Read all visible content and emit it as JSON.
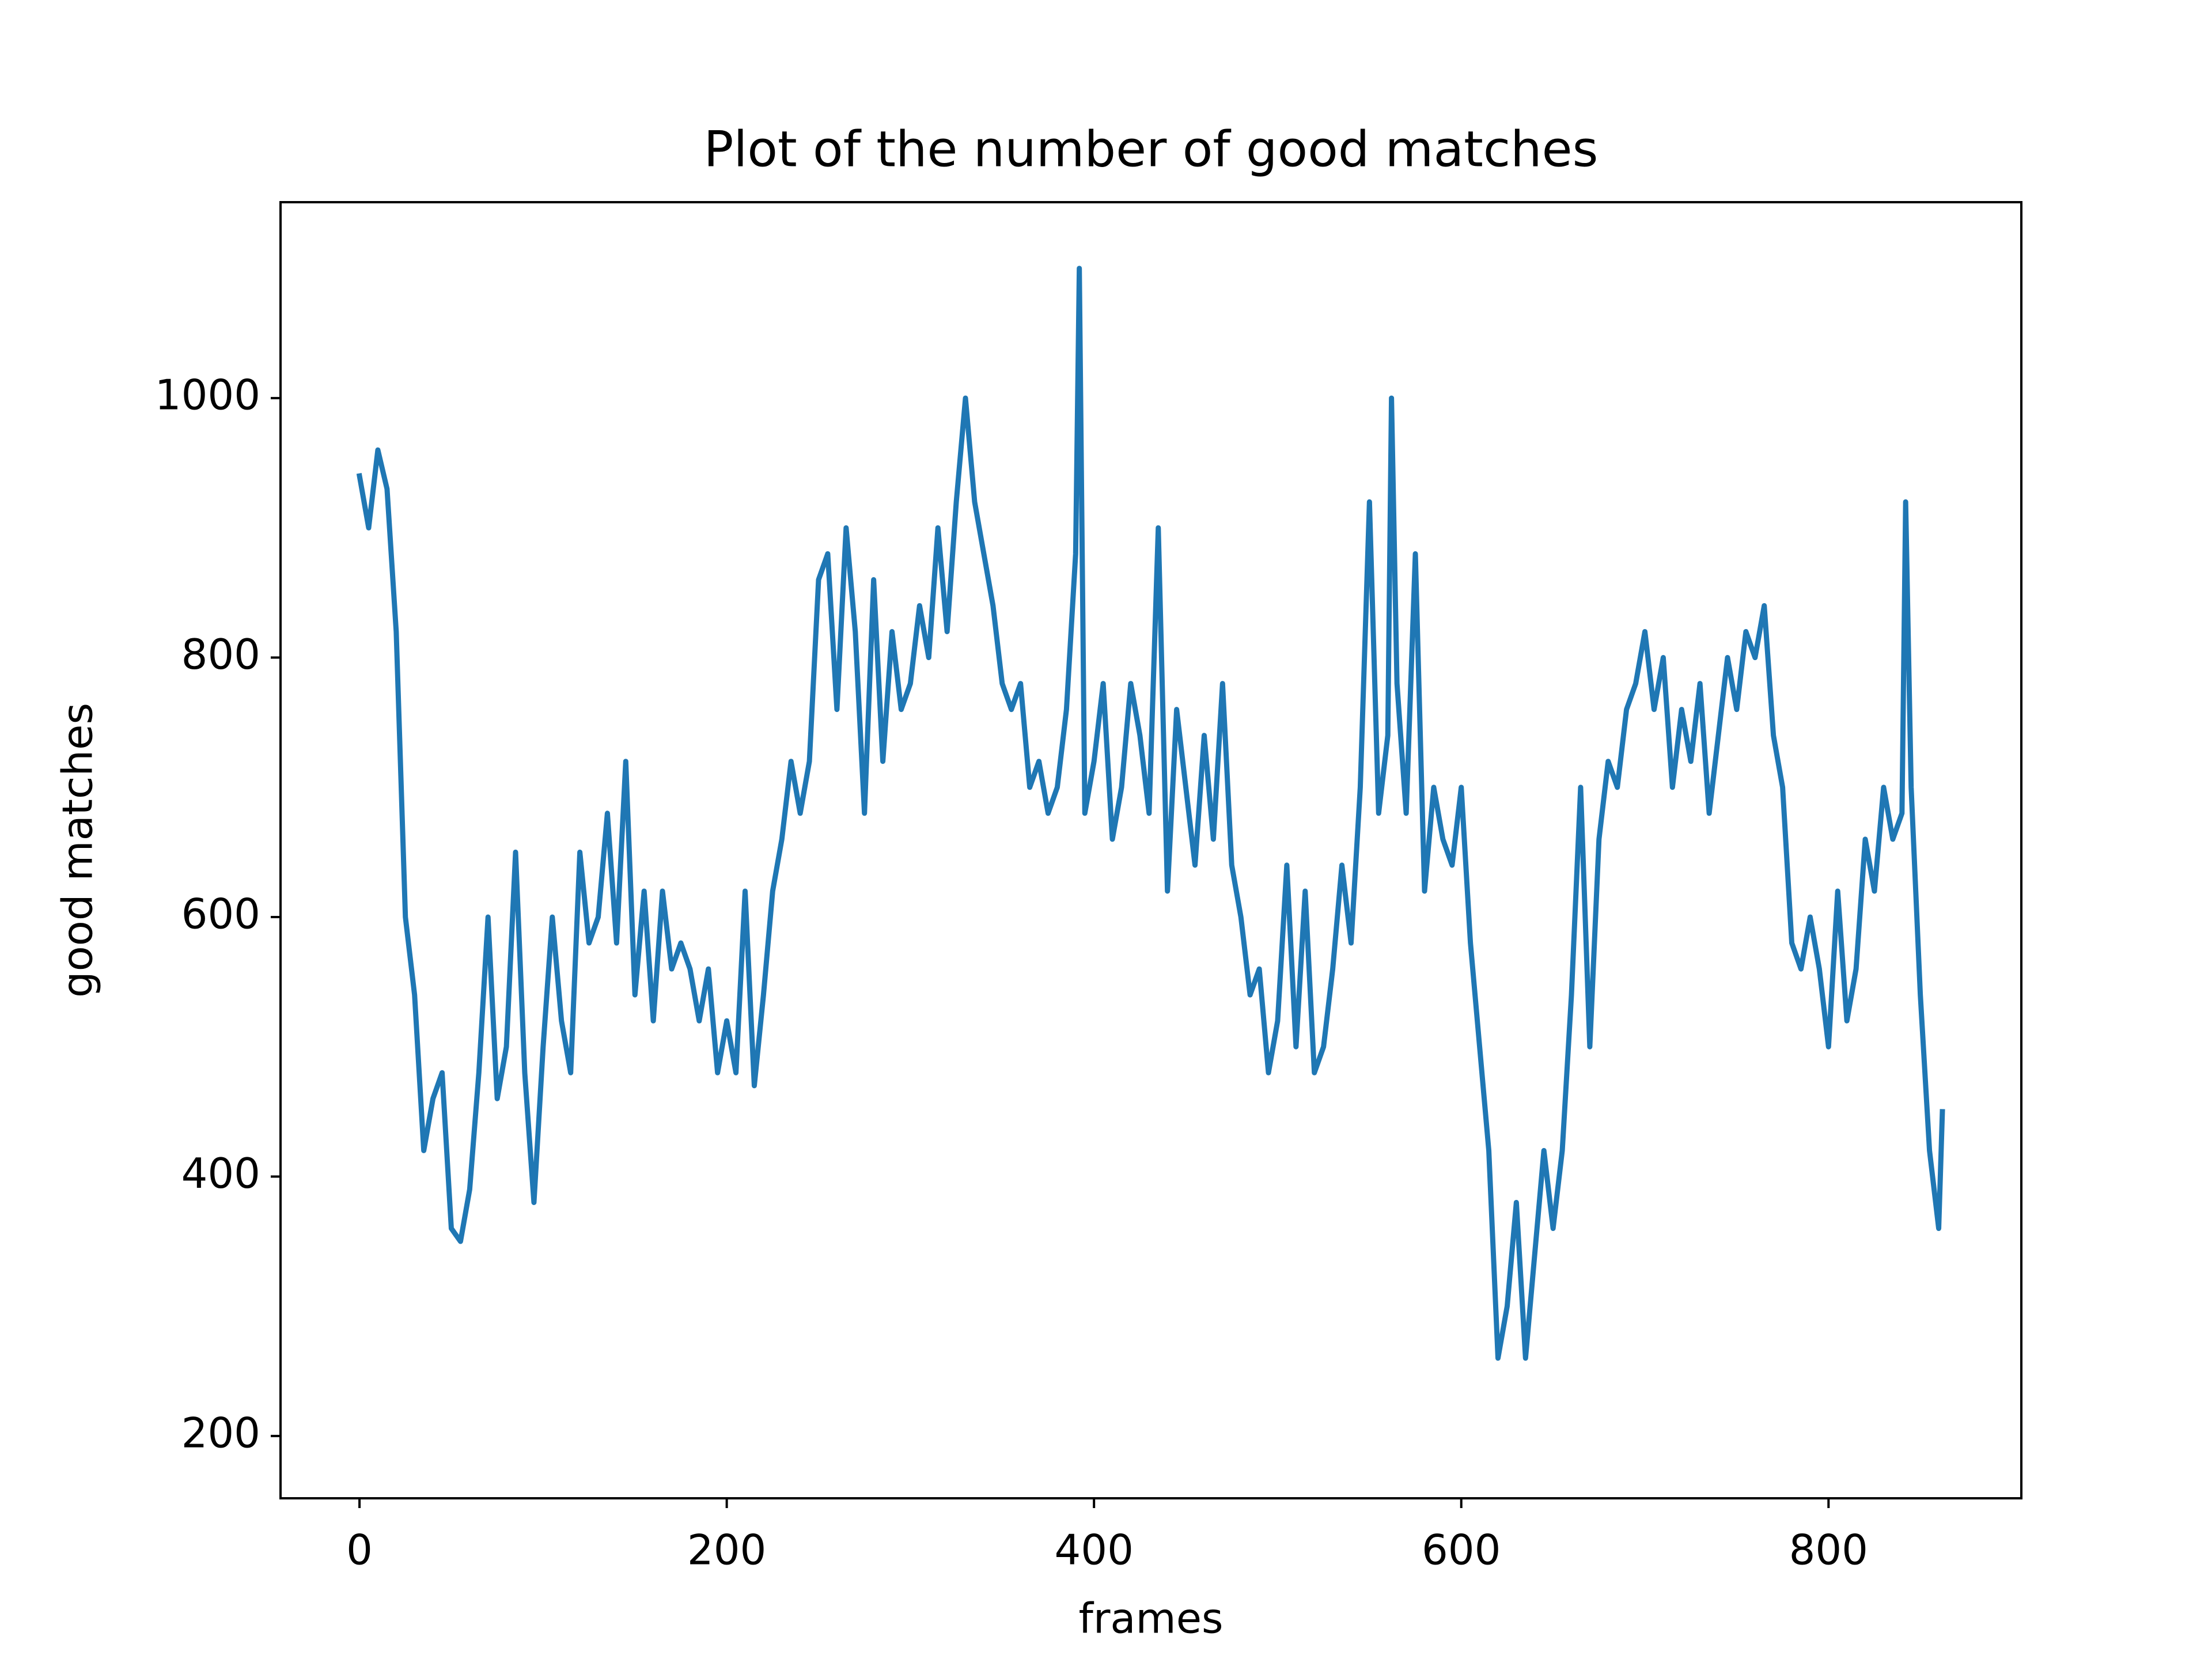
{
  "chart_data": {
    "type": "line",
    "title": "Plot of the number of good matches",
    "xlabel": "frames",
    "ylabel": "good matches",
    "xlim": [
      -43,
      905
    ],
    "ylim": [
      152,
      1151
    ],
    "xticks": [
      0,
      200,
      400,
      600,
      800
    ],
    "yticks": [
      200,
      400,
      600,
      800,
      1000
    ],
    "x": [
      0,
      5,
      10,
      15,
      20,
      25,
      30,
      35,
      40,
      45,
      50,
      55,
      60,
      65,
      70,
      75,
      80,
      85,
      90,
      95,
      100,
      105,
      110,
      115,
      120,
      125,
      130,
      135,
      140,
      145,
      150,
      155,
      160,
      165,
      170,
      175,
      180,
      185,
      190,
      195,
      200,
      205,
      210,
      215,
      220,
      225,
      230,
      235,
      240,
      245,
      250,
      255,
      260,
      265,
      270,
      275,
      280,
      285,
      290,
      295,
      300,
      305,
      310,
      315,
      320,
      325,
      330,
      335,
      340,
      345,
      350,
      355,
      360,
      365,
      370,
      375,
      380,
      385,
      390,
      392,
      395,
      400,
      405,
      410,
      415,
      420,
      425,
      430,
      435,
      440,
      445,
      450,
      455,
      460,
      465,
      470,
      475,
      480,
      485,
      490,
      495,
      500,
      505,
      510,
      515,
      520,
      525,
      530,
      535,
      540,
      545,
      550,
      555,
      560,
      562,
      565,
      570,
      575,
      580,
      585,
      590,
      595,
      600,
      605,
      610,
      615,
      620,
      625,
      630,
      635,
      640,
      645,
      650,
      655,
      660,
      665,
      670,
      675,
      680,
      685,
      690,
      695,
      700,
      705,
      710,
      715,
      720,
      725,
      730,
      735,
      740,
      745,
      750,
      755,
      760,
      765,
      770,
      775,
      780,
      785,
      790,
      795,
      800,
      805,
      810,
      815,
      820,
      825,
      830,
      835,
      840,
      842,
      845,
      850,
      855,
      860,
      862
    ],
    "series": [
      {
        "name": "good matches",
        "color": "#1f77b4",
        "values": [
          940,
          900,
          960,
          930,
          820,
          600,
          540,
          420,
          460,
          480,
          360,
          350,
          390,
          480,
          600,
          460,
          500,
          650,
          480,
          380,
          500,
          600,
          520,
          480,
          650,
          580,
          600,
          680,
          580,
          720,
          540,
          620,
          520,
          620,
          560,
          580,
          560,
          520,
          560,
          480,
          520,
          480,
          620,
          470,
          540,
          620,
          660,
          720,
          680,
          720,
          860,
          880,
          760,
          900,
          820,
          680,
          860,
          720,
          820,
          760,
          780,
          840,
          800,
          900,
          820,
          920,
          1000,
          920,
          880,
          840,
          780,
          760,
          780,
          700,
          720,
          680,
          700,
          760,
          880,
          1100,
          680,
          720,
          780,
          660,
          700,
          780,
          740,
          680,
          900,
          620,
          760,
          700,
          640,
          740,
          660,
          780,
          640,
          600,
          540,
          560,
          480,
          520,
          640,
          500,
          620,
          480,
          500,
          560,
          640,
          580,
          700,
          920,
          680,
          740,
          1000,
          780,
          680,
          880,
          620,
          700,
          660,
          640,
          700,
          580,
          500,
          420,
          260,
          300,
          380,
          260,
          340,
          420,
          360,
          420,
          540,
          700,
          500,
          660,
          720,
          700,
          760,
          780,
          820,
          760,
          800,
          700,
          760,
          720,
          780,
          680,
          740,
          800,
          760,
          820,
          800,
          840,
          740,
          700,
          580,
          560,
          600,
          560,
          500,
          620,
          520,
          560,
          660,
          620,
          700,
          660,
          680,
          920,
          700,
          540,
          420,
          360,
          450
        ]
      }
    ]
  }
}
